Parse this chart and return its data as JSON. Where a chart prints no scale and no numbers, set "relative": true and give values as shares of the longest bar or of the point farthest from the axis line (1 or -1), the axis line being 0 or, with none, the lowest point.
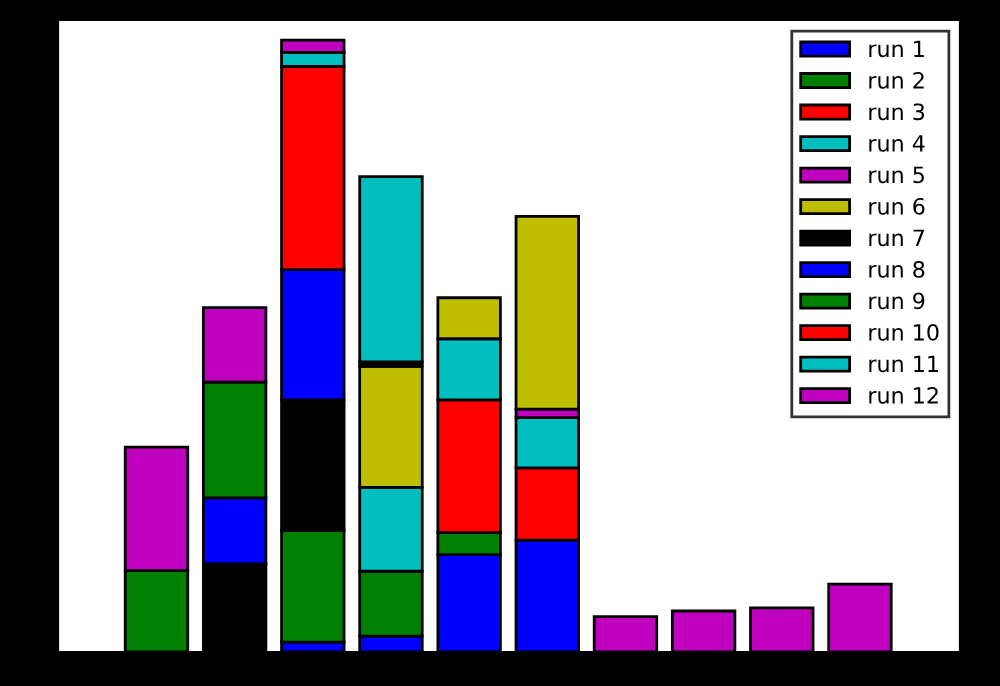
{
  "chart_data": {
    "type": "bar",
    "stacked": true,
    "relative": true,
    "legend": "top right",
    "categories": [
      null,
      null,
      null,
      null,
      null,
      null,
      null,
      null,
      null,
      null
    ],
    "series": [
      {
        "name": "run 1",
        "color": "#0000ff",
        "values": [
          null,
          null,
          0.016,
          0.026,
          0.159,
          0.183,
          null,
          null,
          null,
          null
        ]
      },
      {
        "name": "run 2",
        "color": "#008000",
        "values": [
          null,
          null,
          0.183,
          0.106,
          0.036,
          null,
          null,
          null,
          null,
          null
        ]
      },
      {
        "name": "run 3",
        "color": "#ff0000",
        "values": [
          null,
          null,
          null,
          null,
          0.217,
          0.118,
          null,
          null,
          null,
          null
        ]
      },
      {
        "name": "run 4",
        "color": "#00bfbf",
        "values": [
          null,
          null,
          null,
          0.137,
          0.1,
          0.082,
          null,
          null,
          null,
          null
        ]
      },
      {
        "name": "run 5",
        "color": "#bf00bf",
        "values": [
          null,
          null,
          null,
          null,
          null,
          0.014,
          0.058,
          0.067,
          0.072,
          0.111
        ]
      },
      {
        "name": "run 6",
        "color": "#bfbf00",
        "values": [
          null,
          null,
          null,
          0.198,
          0.067,
          0.315,
          null,
          null,
          null,
          null
        ]
      },
      {
        "name": "run 7",
        "color": "#000000",
        "values": [
          null,
          0.144,
          0.213,
          0.007,
          null,
          null,
          null,
          null,
          null,
          null
        ]
      },
      {
        "name": "run 8",
        "color": "#0000ff",
        "values": [
          null,
          0.108,
          0.213,
          null,
          null,
          null,
          null,
          null,
          null,
          null
        ]
      },
      {
        "name": "run 9",
        "color": "#008000",
        "values": [
          0.133,
          0.189,
          null,
          null,
          null,
          null,
          null,
          null,
          null,
          null
        ]
      },
      {
        "name": "run 10",
        "color": "#ff0000",
        "values": [
          null,
          null,
          0.332,
          null,
          null,
          null,
          null,
          null,
          null,
          null
        ]
      },
      {
        "name": "run 11",
        "color": "#00bfbf",
        "values": [
          null,
          null,
          0.023,
          0.303,
          null,
          null,
          null,
          null,
          null,
          null
        ]
      },
      {
        "name": "run 12",
        "color": "#bf00bf",
        "values": [
          0.202,
          0.122,
          0.02,
          null,
          null,
          null,
          null,
          null,
          null,
          null
        ]
      }
    ]
  }
}
